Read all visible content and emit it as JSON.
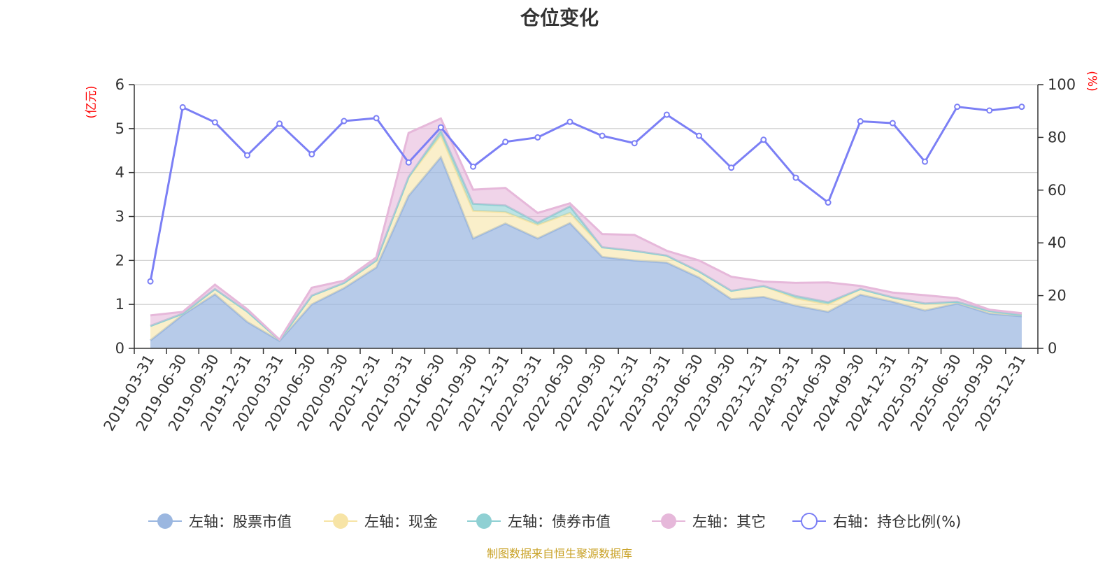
{
  "chart_data": {
    "type": "area",
    "title": "仓位变化",
    "left_axis_label": "(亿元)",
    "right_axis_label": "(%)",
    "left_ylim": [
      0,
      6
    ],
    "left_ticks": [
      0,
      1,
      2,
      3,
      4,
      5,
      6
    ],
    "right_ylim": [
      0,
      100
    ],
    "right_ticks": [
      0,
      20,
      40,
      60,
      80,
      100
    ],
    "categories": [
      "2019-03-31",
      "2019-06-30",
      "2019-09-30",
      "2019-12-31",
      "2020-03-31",
      "2020-06-30",
      "2020-09-30",
      "2020-12-31",
      "2021-03-31",
      "2021-06-30",
      "2021-09-30",
      "2021-12-31",
      "2022-03-31",
      "2022-06-30",
      "2022-09-30",
      "2022-12-31",
      "2023-03-31",
      "2023-06-30",
      "2023-09-30",
      "2023-12-31",
      "2024-03-31",
      "2024-06-30",
      "2024-09-30",
      "2024-12-31",
      "2025-03-31",
      "2025-06-30",
      "2025-09-30",
      "2025-12-31"
    ],
    "series": [
      {
        "name": "左轴：股票市值",
        "axis": "left",
        "kind": "area",
        "color": "#9bb7e0",
        "values": [
          0.18,
          0.76,
          1.23,
          0.6,
          0.17,
          1.0,
          1.37,
          1.84,
          3.47,
          4.35,
          2.5,
          2.84,
          2.5,
          2.85,
          2.08,
          2.0,
          1.95,
          1.61,
          1.12,
          1.17,
          0.97,
          0.83,
          1.22,
          1.06,
          0.86,
          1.02,
          0.79,
          0.73
        ]
      },
      {
        "name": "左轴：现金",
        "axis": "left",
        "kind": "area",
        "color": "#f7e4a6",
        "values": [
          0.33,
          0.03,
          0.12,
          0.24,
          0.02,
          0.2,
          0.12,
          0.16,
          0.42,
          0.5,
          0.63,
          0.26,
          0.31,
          0.23,
          0.22,
          0.22,
          0.16,
          0.14,
          0.19,
          0.25,
          0.17,
          0.17,
          0.13,
          0.1,
          0.16,
          0.04,
          0.06,
          0.03
        ]
      },
      {
        "name": "左轴：债券市值",
        "axis": "left",
        "kind": "area",
        "color": "#8fd0d3",
        "values": [
          0,
          0,
          0,
          0,
          0,
          0,
          0,
          0,
          0.01,
          0.1,
          0.16,
          0.15,
          0.05,
          0.15,
          0,
          0,
          0,
          0,
          0,
          0,
          0.05,
          0.05,
          0,
          0,
          0,
          0,
          0,
          0
        ]
      },
      {
        "name": "左轴：其它",
        "axis": "left",
        "kind": "area",
        "color": "#e6b8da",
        "values": [
          0.24,
          0.04,
          0.1,
          0.05,
          0.01,
          0.18,
          0.05,
          0.07,
          1.0,
          0.28,
          0.32,
          0.4,
          0.22,
          0.07,
          0.3,
          0.36,
          0.11,
          0.25,
          0.32,
          0.1,
          0.3,
          0.45,
          0.07,
          0.11,
          0.19,
          0.08,
          0.03,
          0.04
        ]
      },
      {
        "name": "右轴：持仓比例(%)",
        "axis": "right",
        "kind": "line",
        "color": "#7b7ff5",
        "values": [
          25.4,
          91.4,
          85.7,
          73.2,
          85.2,
          73.6,
          86.2,
          87.3,
          70.5,
          83.8,
          68.9,
          78.3,
          80.0,
          85.9,
          80.6,
          77.8,
          88.6,
          80.6,
          68.5,
          79.1,
          64.7,
          55.3,
          86.1,
          85.4,
          70.8,
          91.6,
          90.2,
          91.6
        ]
      }
    ]
  },
  "source_note": "制图数据来自恒生聚源数据库",
  "colors": {
    "unit_label": "#ff0000",
    "source_note": "#c9a227",
    "grid": "#cccccc",
    "axis": "#333333"
  }
}
